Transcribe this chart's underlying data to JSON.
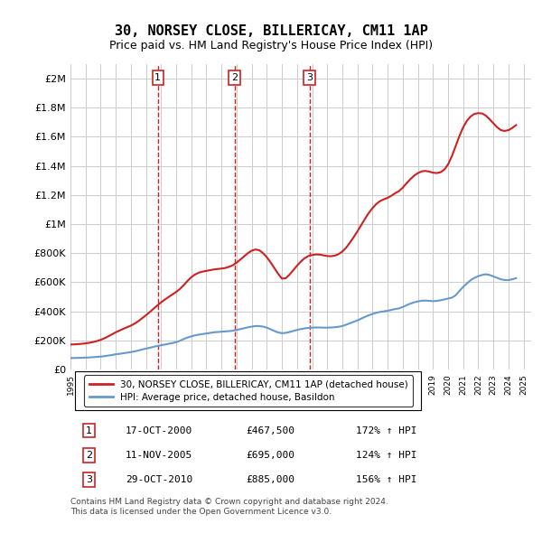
{
  "title": "30, NORSEY CLOSE, BILLERICAY, CM11 1AP",
  "subtitle": "Price paid vs. HM Land Registry's House Price Index (HPI)",
  "xlim": [
    1995.0,
    2025.5
  ],
  "ylim": [
    0,
    2100000
  ],
  "yticks": [
    0,
    200000,
    400000,
    600000,
    800000,
    1000000,
    1200000,
    1400000,
    1600000,
    1800000,
    2000000
  ],
  "ytick_labels": [
    "£0",
    "£200K",
    "£400K",
    "£600K",
    "£800K",
    "£1M",
    "£1.2M",
    "£1.4M",
    "£1.6M",
    "£1.8M",
    "£2M"
  ],
  "xticks": [
    1995,
    1996,
    1997,
    1998,
    1999,
    2000,
    2001,
    2002,
    2003,
    2004,
    2005,
    2006,
    2007,
    2008,
    2009,
    2010,
    2011,
    2012,
    2013,
    2014,
    2015,
    2016,
    2017,
    2018,
    2019,
    2020,
    2021,
    2022,
    2023,
    2024,
    2025
  ],
  "sale_dates": [
    2000.79,
    2005.86,
    2010.83
  ],
  "sale_prices": [
    467500,
    695000,
    885000
  ],
  "sale_labels": [
    "1",
    "2",
    "3"
  ],
  "hpi_line_color": "#6699cc",
  "price_line_color": "#cc2222",
  "vline_color": "#cc2222",
  "background_color": "#ffffff",
  "grid_color": "#cccccc",
  "legend_entries": [
    "30, NORSEY CLOSE, BILLERICAY, CM11 1AP (detached house)",
    "HPI: Average price, detached house, Basildon"
  ],
  "table_rows": [
    [
      "1",
      "17-OCT-2000",
      "£467,500",
      "172% ↑ HPI"
    ],
    [
      "2",
      "11-NOV-2005",
      "£695,000",
      "124% ↑ HPI"
    ],
    [
      "3",
      "29-OCT-2010",
      "£885,000",
      "156% ↑ HPI"
    ]
  ],
  "footnote": "Contains HM Land Registry data © Crown copyright and database right 2024.\nThis data is licensed under the Open Government Licence v3.0.",
  "hpi_data_x": [
    1995.0,
    1995.25,
    1995.5,
    1995.75,
    1996.0,
    1996.25,
    1996.5,
    1996.75,
    1997.0,
    1997.25,
    1997.5,
    1997.75,
    1998.0,
    1998.25,
    1998.5,
    1998.75,
    1999.0,
    1999.25,
    1999.5,
    1999.75,
    2000.0,
    2000.25,
    2000.5,
    2000.75,
    2001.0,
    2001.25,
    2001.5,
    2001.75,
    2002.0,
    2002.25,
    2002.5,
    2002.75,
    2003.0,
    2003.25,
    2003.5,
    2003.75,
    2004.0,
    2004.25,
    2004.5,
    2004.75,
    2005.0,
    2005.25,
    2005.5,
    2005.75,
    2006.0,
    2006.25,
    2006.5,
    2006.75,
    2007.0,
    2007.25,
    2007.5,
    2007.75,
    2008.0,
    2008.25,
    2008.5,
    2008.75,
    2009.0,
    2009.25,
    2009.5,
    2009.75,
    2010.0,
    2010.25,
    2010.5,
    2010.75,
    2011.0,
    2011.25,
    2011.5,
    2011.75,
    2012.0,
    2012.25,
    2012.5,
    2012.75,
    2013.0,
    2013.25,
    2013.5,
    2013.75,
    2014.0,
    2014.25,
    2014.5,
    2014.75,
    2015.0,
    2015.25,
    2015.5,
    2015.75,
    2016.0,
    2016.25,
    2016.5,
    2016.75,
    2017.0,
    2017.25,
    2017.5,
    2017.75,
    2018.0,
    2018.25,
    2018.5,
    2018.75,
    2019.0,
    2019.25,
    2019.5,
    2019.75,
    2020.0,
    2020.25,
    2020.5,
    2020.75,
    2021.0,
    2021.25,
    2021.5,
    2021.75,
    2022.0,
    2022.25,
    2022.5,
    2022.75,
    2023.0,
    2023.25,
    2023.5,
    2023.75,
    2024.0,
    2024.25,
    2024.5
  ],
  "hpi_data_y": [
    79000,
    79500,
    80000,
    81000,
    82000,
    83000,
    85000,
    87000,
    89000,
    92000,
    96000,
    100000,
    105000,
    108000,
    112000,
    116000,
    120000,
    125000,
    131000,
    138000,
    144000,
    150000,
    156000,
    162000,
    167000,
    172000,
    177000,
    182000,
    188000,
    198000,
    210000,
    220000,
    228000,
    235000,
    240000,
    244000,
    248000,
    252000,
    256000,
    258000,
    260000,
    262000,
    264000,
    267000,
    272000,
    278000,
    284000,
    290000,
    295000,
    299000,
    299000,
    295000,
    288000,
    277000,
    265000,
    255000,
    250000,
    252000,
    258000,
    265000,
    272000,
    278000,
    283000,
    286000,
    288000,
    289000,
    289000,
    288000,
    288000,
    289000,
    291000,
    294000,
    299000,
    308000,
    318000,
    328000,
    338000,
    350000,
    362000,
    373000,
    382000,
    390000,
    396000,
    400000,
    404000,
    410000,
    416000,
    420000,
    430000,
    442000,
    453000,
    462000,
    468000,
    473000,
    474000,
    472000,
    470000,
    472000,
    476000,
    482000,
    488000,
    494000,
    510000,
    540000,
    568000,
    592000,
    615000,
    630000,
    642000,
    650000,
    655000,
    650000,
    640000,
    630000,
    620000,
    615000,
    615000,
    620000,
    628000
  ],
  "price_data_x": [
    1995.0,
    1995.25,
    1995.5,
    1995.75,
    1996.0,
    1996.25,
    1996.5,
    1996.75,
    1997.0,
    1997.25,
    1997.5,
    1997.75,
    1998.0,
    1998.25,
    1998.5,
    1998.75,
    1999.0,
    1999.25,
    1999.5,
    1999.75,
    2000.0,
    2000.25,
    2000.5,
    2000.75,
    2001.0,
    2001.25,
    2001.5,
    2001.75,
    2002.0,
    2002.25,
    2002.5,
    2002.75,
    2003.0,
    2003.25,
    2003.5,
    2003.75,
    2004.0,
    2004.25,
    2004.5,
    2004.75,
    2005.0,
    2005.25,
    2005.5,
    2005.75,
    2006.0,
    2006.25,
    2006.5,
    2006.75,
    2007.0,
    2007.25,
    2007.5,
    2007.75,
    2008.0,
    2008.25,
    2008.5,
    2008.75,
    2009.0,
    2009.25,
    2009.5,
    2009.75,
    2010.0,
    2010.25,
    2010.5,
    2010.75,
    2011.0,
    2011.25,
    2011.5,
    2011.75,
    2012.0,
    2012.25,
    2012.5,
    2012.75,
    2013.0,
    2013.25,
    2013.5,
    2013.75,
    2014.0,
    2014.25,
    2014.5,
    2014.75,
    2015.0,
    2015.25,
    2015.5,
    2015.75,
    2016.0,
    2016.25,
    2016.5,
    2016.75,
    2017.0,
    2017.25,
    2017.5,
    2017.75,
    2018.0,
    2018.25,
    2018.5,
    2018.75,
    2019.0,
    2019.25,
    2019.5,
    2019.75,
    2020.0,
    2020.25,
    2020.5,
    2020.75,
    2021.0,
    2021.25,
    2021.5,
    2021.75,
    2022.0,
    2022.25,
    2022.5,
    2022.75,
    2023.0,
    2023.25,
    2023.5,
    2023.75,
    2024.0,
    2024.25,
    2024.5
  ],
  "price_data_y": [
    172000,
    173000,
    175000,
    177000,
    180000,
    184000,
    189000,
    196000,
    204000,
    215000,
    228000,
    242000,
    256000,
    268000,
    280000,
    291000,
    302000,
    316000,
    333000,
    353000,
    373000,
    395000,
    418000,
    440000,
    462000,
    481000,
    499000,
    516000,
    534000,
    554000,
    580000,
    609000,
    635000,
    653000,
    666000,
    673000,
    678000,
    683000,
    688000,
    691000,
    694000,
    698000,
    706000,
    717000,
    735000,
    756000,
    778000,
    800000,
    817000,
    825000,
    820000,
    800000,
    772000,
    737000,
    697000,
    658000,
    625000,
    627000,
    652000,
    683000,
    714000,
    742000,
    765000,
    780000,
    787000,
    791000,
    790000,
    785000,
    780000,
    779000,
    783000,
    793000,
    811000,
    837000,
    872000,
    910000,
    950000,
    993000,
    1036000,
    1076000,
    1110000,
    1138000,
    1158000,
    1170000,
    1180000,
    1195000,
    1212000,
    1226000,
    1250000,
    1280000,
    1308000,
    1332000,
    1350000,
    1362000,
    1365000,
    1360000,
    1353000,
    1350000,
    1356000,
    1374000,
    1410000,
    1466000,
    1535000,
    1605000,
    1665000,
    1710000,
    1740000,
    1757000,
    1762000,
    1760000,
    1745000,
    1720000,
    1692000,
    1665000,
    1645000,
    1640000,
    1645000,
    1660000,
    1680000
  ]
}
